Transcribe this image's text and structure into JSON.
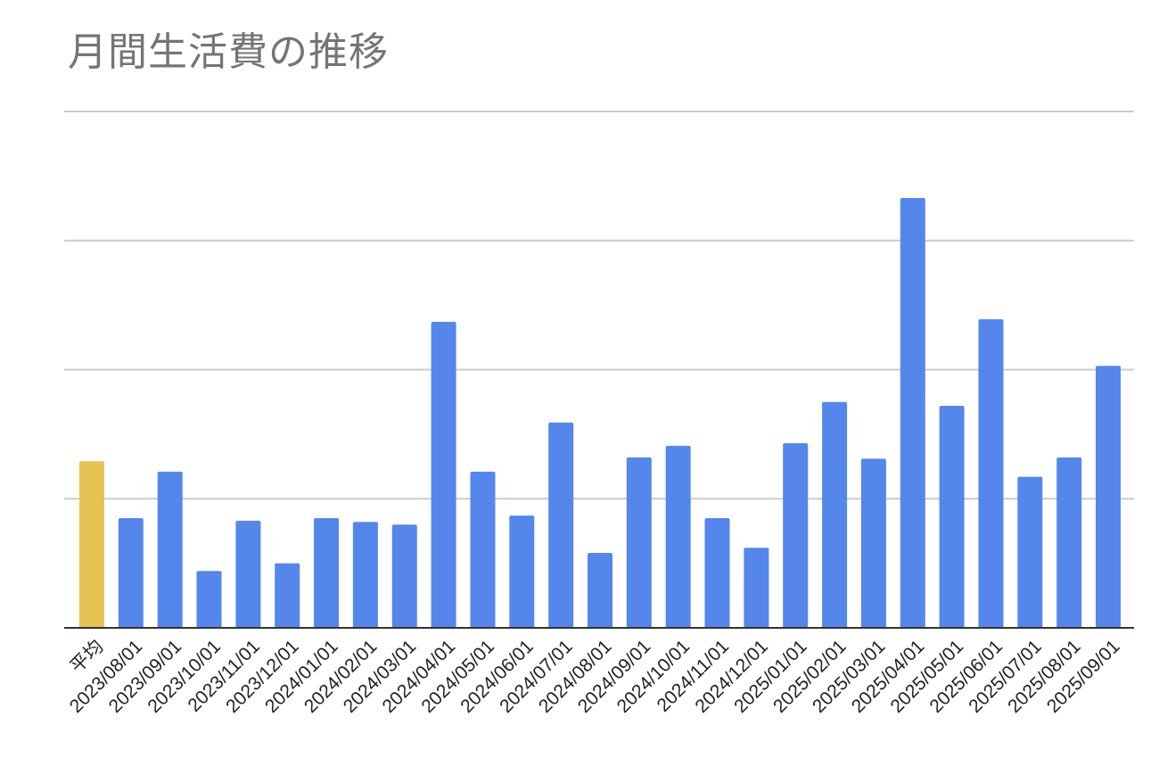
{
  "chart_data": {
    "type": "bar",
    "title": "月間生活費の推移",
    "xlabel": "",
    "ylabel": "",
    "grid": true,
    "categories": [
      "平均",
      "2023/08/01",
      "2023/09/01",
      "2023/10/01",
      "2023/11/01",
      "2023/12/01",
      "2024/01/01",
      "2024/02/01",
      "2024/03/01",
      "2024/04/01",
      "2024/05/01",
      "2024/06/01",
      "2024/07/01",
      "2024/08/01",
      "2024/09/01",
      "2024/10/01",
      "2024/11/01",
      "2024/12/01",
      "2025/01/01",
      "2025/02/01",
      "2025/03/01",
      "2025/04/01",
      "2025/05/01",
      "2025/06/01",
      "2025/07/01",
      "2025/08/01",
      "2025/09/01"
    ],
    "values": [
      1.29,
      0.85,
      1.21,
      0.44,
      0.83,
      0.5,
      0.85,
      0.82,
      0.8,
      2.37,
      1.21,
      0.87,
      1.59,
      0.58,
      1.32,
      1.41,
      0.85,
      0.62,
      1.43,
      1.75,
      1.31,
      3.33,
      1.72,
      2.39,
      1.17,
      1.32,
      2.03
    ],
    "ylim": [
      0,
      4
    ],
    "gridlines": [
      0,
      1,
      2,
      3,
      4
    ],
    "colors": {
      "average_bar": "#e8c253",
      "bar": "#5586ec",
      "grid": "#cccccc",
      "baseline": "#333333",
      "title": "#757575"
    }
  }
}
